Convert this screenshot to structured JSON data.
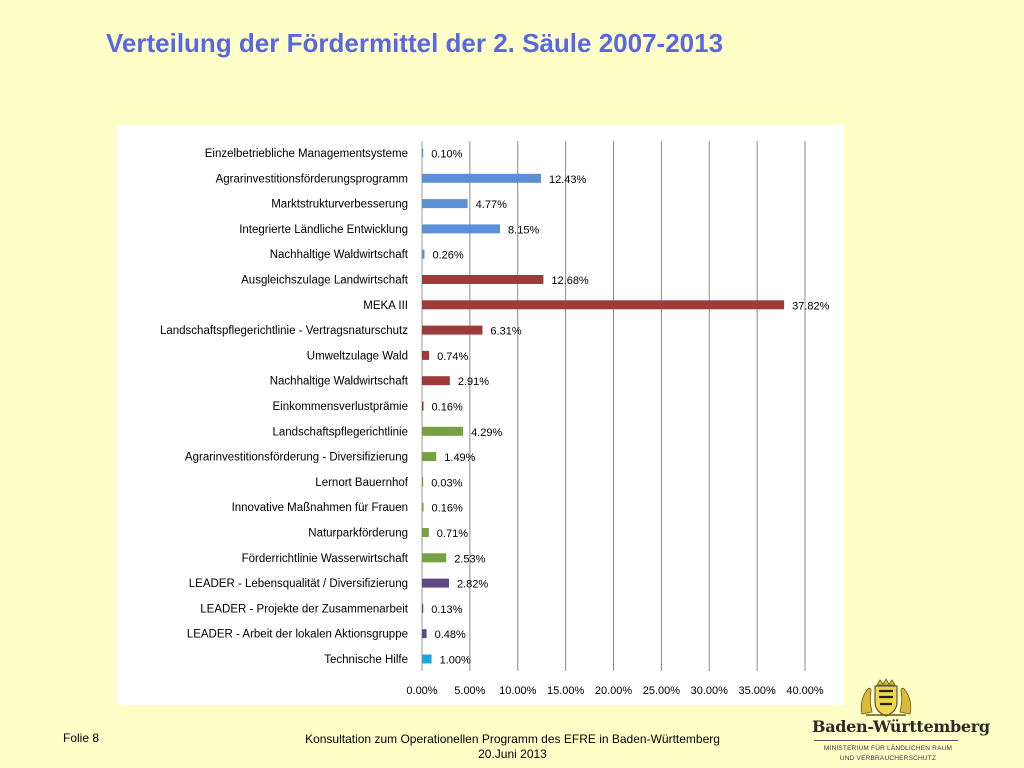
{
  "slide": {
    "title": "Verteilung der Fördermittel der 2. Säule 2007-2013",
    "slide_number": "Folie 8",
    "footer_line1": "Konsultation zum Operationellen Programm des EFRE in Baden-Württemberg",
    "footer_line2": "20.Juni 2013"
  },
  "logo": {
    "name": "Baden-Württemberg",
    "subtitle_line1": "MINISTERIUM FÜR LÄNDLICHEN RAUM",
    "subtitle_line2": "UND VERBRAUCHERSCHUTZ"
  },
  "colors": {
    "title": "#5a67e3",
    "background": "#ffffc8",
    "blue": "#5b8fd6",
    "red": "#9e3a3a",
    "green": "#77a042",
    "purple": "#5e4a82",
    "cyan": "#18a8e0"
  },
  "chart_data": {
    "type": "bar",
    "orientation": "horizontal",
    "xlim": [
      0,
      40
    ],
    "xticks": [
      "0.00%",
      "5.00%",
      "10.00%",
      "15.00%",
      "20.00%",
      "25.00%",
      "30.00%",
      "35.00%",
      "40.00%"
    ],
    "grid": "vertical",
    "legend": "none",
    "bars": [
      {
        "category": "Einzelbetriebliche Managementsysteme",
        "value": 0.1,
        "label": "0.10%",
        "color": "#5b8fd6"
      },
      {
        "category": "Agrarinvestitionsförderungsprogramm",
        "value": 12.43,
        "label": "12.43%",
        "color": "#5b8fd6"
      },
      {
        "category": "Marktstrukturverbesserung",
        "value": 4.77,
        "label": "4.77%",
        "color": "#5b8fd6"
      },
      {
        "category": "Integrierte Ländliche Entwicklung",
        "value": 8.15,
        "label": "8.15%",
        "color": "#5b8fd6"
      },
      {
        "category": "Nachhaltige Waldwirtschaft",
        "value": 0.26,
        "label": "0.26%",
        "color": "#5b8fd6"
      },
      {
        "category": "Ausgleichszulage Landwirtschaft",
        "value": 12.68,
        "label": "12.68%",
        "color": "#9e3a3a"
      },
      {
        "category": "MEKA III",
        "value": 37.82,
        "label": "37.82%",
        "color": "#9e3a3a"
      },
      {
        "category": "Landschaftspflegerichtlinie - Vertragsnaturschutz",
        "value": 6.31,
        "label": "6.31%",
        "color": "#9e3a3a"
      },
      {
        "category": "Umweltzulage Wald",
        "value": 0.74,
        "label": "0.74%",
        "color": "#9e3a3a"
      },
      {
        "category": "Nachhaltige Waldwirtschaft",
        "value": 2.91,
        "label": "2.91%",
        "color": "#9e3a3a"
      },
      {
        "category": "Einkommensverlustprämie",
        "value": 0.16,
        "label": "0.16%",
        "color": "#9e3a3a"
      },
      {
        "category": "Landschaftspflegerichtlinie",
        "value": 4.29,
        "label": "4.29%",
        "color": "#77a042"
      },
      {
        "category": "Agrarinvestitionsförderung - Diversifizierung",
        "value": 1.49,
        "label": "1.49%",
        "color": "#77a042"
      },
      {
        "category": "Lernort Bauernhof",
        "value": 0.03,
        "label": "0.03%",
        "color": "#77a042"
      },
      {
        "category": "Innovative Maßnahmen für Frauen",
        "value": 0.16,
        "label": "0.16%",
        "color": "#77a042"
      },
      {
        "category": "Naturparkförderung",
        "value": 0.71,
        "label": "0.71%",
        "color": "#77a042"
      },
      {
        "category": "Förderrichtlinie Wasserwirtschaft",
        "value": 2.53,
        "label": "2.53%",
        "color": "#77a042"
      },
      {
        "category": "LEADER - Lebensqualität / Diversifizierung",
        "value": 2.82,
        "label": "2.82%",
        "color": "#5e4a82"
      },
      {
        "category": "LEADER - Projekte der Zusammenarbeit",
        "value": 0.13,
        "label": "0.13%",
        "color": "#5e4a82"
      },
      {
        "category": "LEADER - Arbeit der lokalen Aktionsgruppe",
        "value": 0.48,
        "label": "0.48%",
        "color": "#5e4a82"
      },
      {
        "category": "Technische Hilfe",
        "value": 1.0,
        "label": "1.00%",
        "color": "#18a8e0"
      }
    ]
  }
}
